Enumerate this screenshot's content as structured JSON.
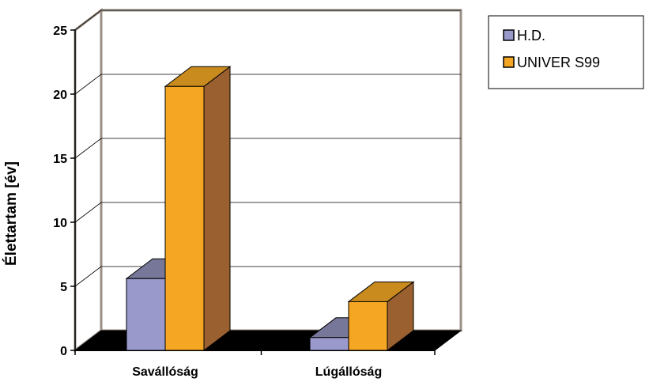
{
  "chart_data": {
    "type": "bar",
    "categories": [
      "Saválló Ság",
      "Lúgálló Ság"
    ],
    "category_labels": [
      "Saválló­ság",
      "Lúgálló­ság"
    ],
    "series": [
      {
        "name": "H.D.",
        "values": [
          5.6,
          1.0
        ],
        "color": "#9999cc",
        "top_color": "#777799",
        "side_color": "#666688"
      },
      {
        "name": "UNIVER S99",
        "values": [
          20.6,
          3.8
        ],
        "color": "#f5a623",
        "top_color": "#c98a1e",
        "side_color": "#9a6030"
      }
    ],
    "ylabel": "Élettartam [év]",
    "ylim": [
      0,
      25
    ],
    "yticks": [
      "0",
      "5",
      "10",
      "15",
      "20",
      "25"
    ],
    "grid": true,
    "legend_position": "top-right",
    "style": "3d-column"
  }
}
